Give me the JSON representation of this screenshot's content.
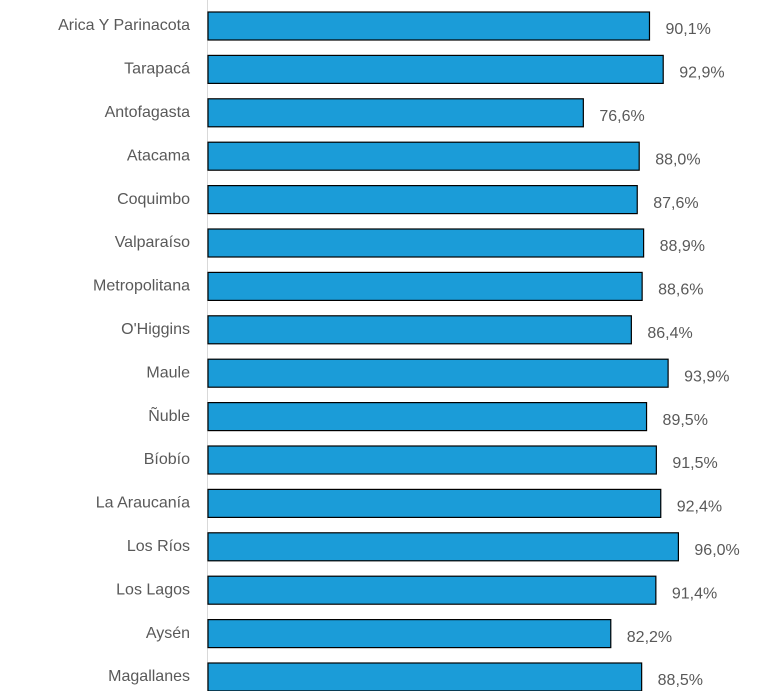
{
  "chart_data": {
    "type": "bar",
    "orientation": "horizontal",
    "categories": [
      "Arica Y Parinacota",
      "Tarapacá",
      "Antofagasta",
      "Atacama",
      "Coquimbo",
      "Valparaíso",
      "Metropolitana",
      "O'Higgins",
      "Maule",
      "Ñuble",
      "Bíobío",
      "La Araucanía",
      "Los Ríos",
      "Los Lagos",
      "Aysén",
      "Magallanes"
    ],
    "values": [
      90.1,
      92.9,
      76.6,
      88.0,
      87.6,
      88.9,
      88.6,
      86.4,
      93.9,
      89.5,
      91.5,
      92.4,
      96.0,
      91.4,
      82.2,
      88.5
    ],
    "value_labels": [
      "90,1%",
      "92,9%",
      "76,6%",
      "88,0%",
      "87,6%",
      "88,9%",
      "88,6%",
      "86,4%",
      "93,9%",
      "89,5%",
      "91,5%",
      "92,4%",
      "96,0%",
      "91,4%",
      "82,2%",
      "88,5%"
    ],
    "color": "#1b9cd8",
    "xlim": [
      0,
      100
    ]
  }
}
